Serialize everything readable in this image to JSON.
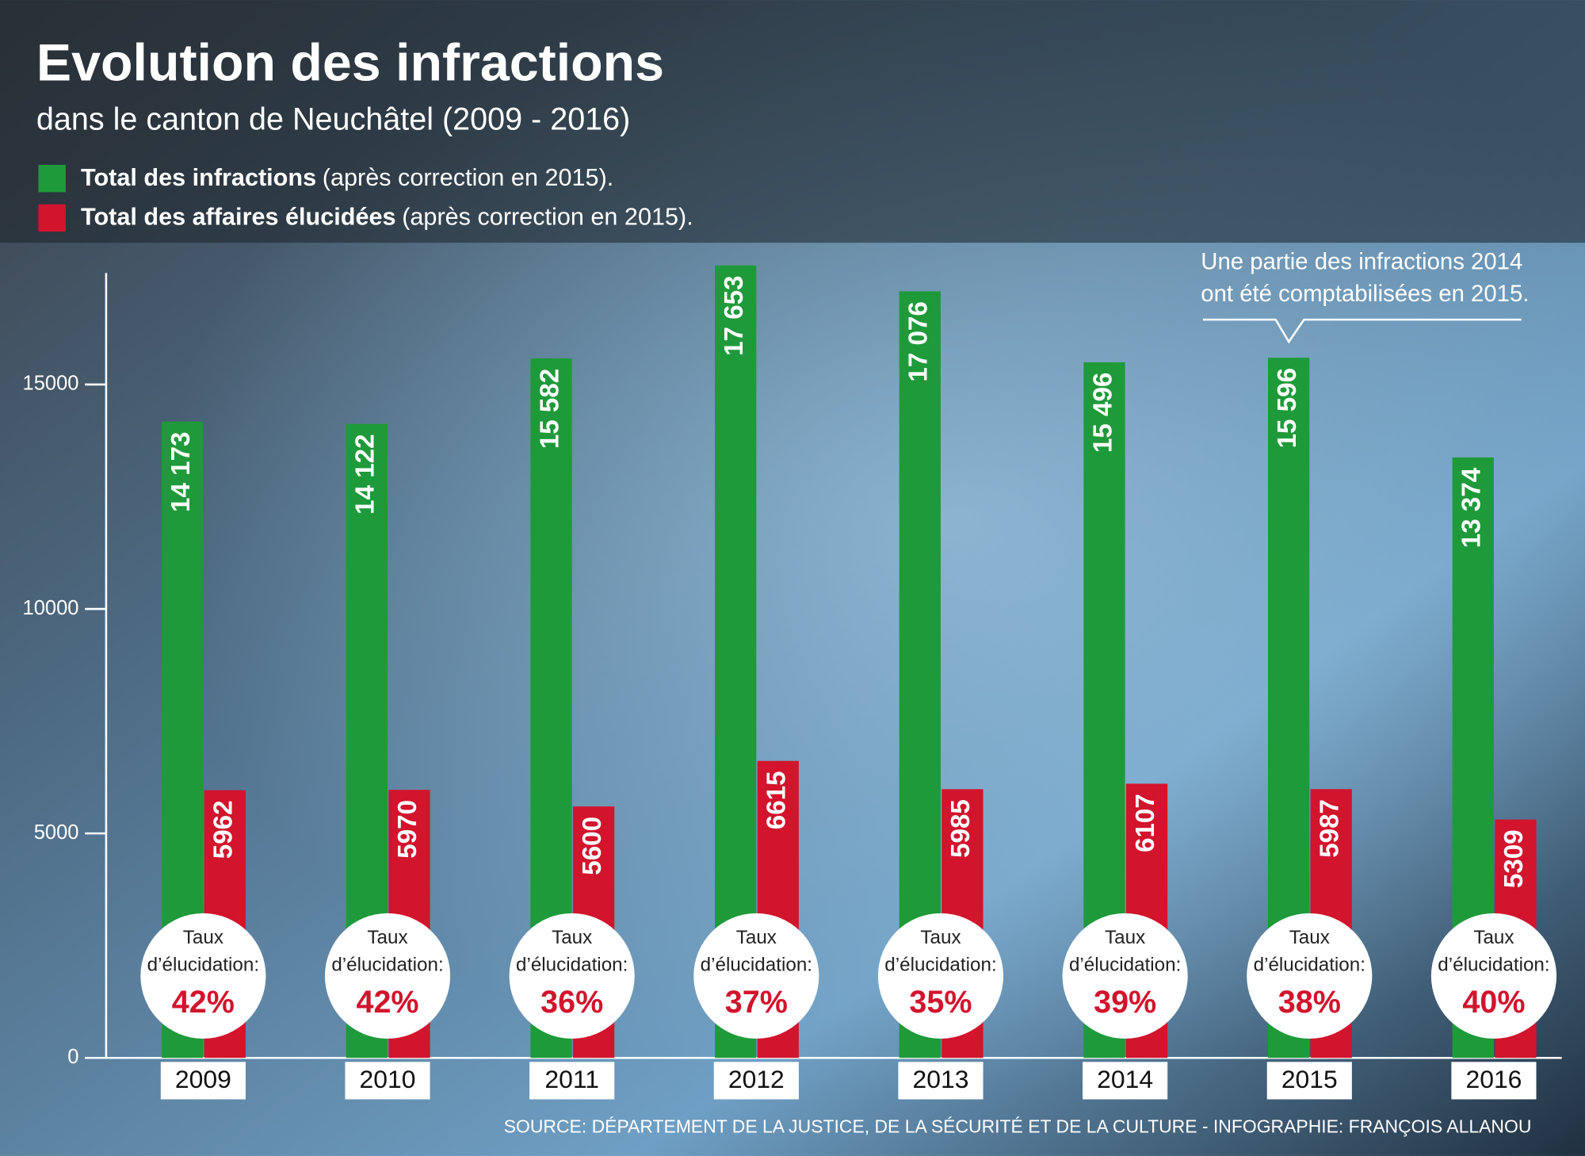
{
  "chart_data": {
    "type": "bar",
    "title": "Evolution des infractions",
    "subtitle": "dans le canton de Neuchâtel (2009 - 2016)",
    "categories": [
      "2009",
      "2010",
      "2011",
      "2012",
      "2013",
      "2014",
      "2015",
      "2016"
    ],
    "series": [
      {
        "name": "Total des infractions",
        "note": "(après correction en 2015).",
        "color": "#1f9a3a",
        "values": [
          14173,
          14122,
          15582,
          17653,
          17076,
          15496,
          15596,
          13374
        ],
        "value_labels": [
          "14 173",
          "14 122",
          "15 582",
          "17 653",
          "17 076",
          "15 496",
          "15 596",
          "13 374"
        ]
      },
      {
        "name": "Total des affaires élucidées",
        "note": "(après correction en 2015).",
        "color": "#d2142d",
        "values": [
          5962,
          5970,
          5600,
          6615,
          5985,
          6107,
          5987,
          5309
        ]
      }
    ],
    "rate_label": [
      "Taux",
      "d’élucidation:"
    ],
    "rates": {
      "values": [
        42,
        42,
        36,
        37,
        35,
        39,
        38,
        40
      ],
      "value_labels": [
        "42%",
        "42%",
        "36%",
        "37%",
        "35%",
        "39%",
        "38%",
        "40%"
      ]
    },
    "annotation": [
      "Une partie des infractions 2014",
      "ont été comptabilisées en 2015."
    ],
    "source": "SOURCE: DÉPARTEMENT DE LA JUSTICE, DE LA SÉCURITÉ ET DE LA CULTURE - INFOGRAPHIE: FRANÇOIS ALLANOU",
    "ylim": [
      0,
      18000
    ],
    "yticks": [
      0,
      5000,
      10000,
      15000
    ]
  }
}
